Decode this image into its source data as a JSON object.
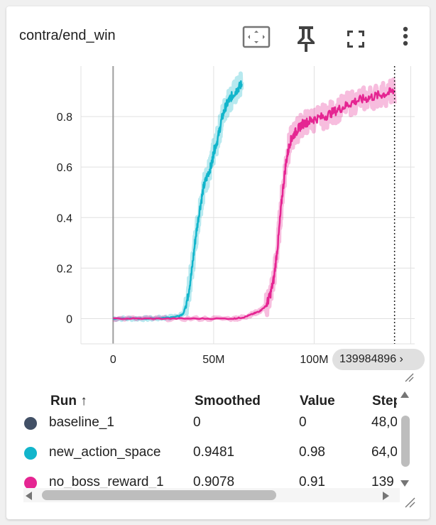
{
  "card": {
    "title": "contra/end_win",
    "icons": [
      "fit-domain-icon",
      "pin-icon",
      "fullscreen-icon",
      "more-vert-icon"
    ]
  },
  "step_badge": "139984896 ›",
  "chart_data": {
    "type": "line",
    "title": "contra/end_win",
    "xlabel": "",
    "ylabel": "",
    "xlim": [
      -16000000,
      150000000
    ],
    "ylim": [
      -0.1,
      1.0
    ],
    "x_ticks": [
      0,
      50000000,
      100000000
    ],
    "x_tick_labels": [
      "0",
      "50M",
      "100M"
    ],
    "y_ticks": [
      0,
      0.2,
      0.4,
      0.6,
      0.8
    ],
    "y_tick_labels": [
      "0",
      "0.2",
      "0.4",
      "0.6",
      "0.8"
    ],
    "grid": true,
    "cursor_x": 139984896,
    "series": [
      {
        "name": "new_action_space",
        "color": "#12b5cb",
        "x": [
          0,
          10000000,
          20000000,
          28000000,
          33000000,
          35000000,
          37000000,
          39000000,
          41000000,
          43000000,
          45000000,
          47000000,
          49000000,
          50000000,
          52000000,
          54000000,
          56000000,
          58000000,
          60000000,
          62000000,
          64000000
        ],
        "y": [
          0,
          0,
          0,
          0.005,
          0.01,
          0.02,
          0.08,
          0.18,
          0.32,
          0.43,
          0.52,
          0.57,
          0.61,
          0.66,
          0.71,
          0.79,
          0.84,
          0.87,
          0.89,
          0.91,
          0.93
        ]
      },
      {
        "name": "no_boss_reward_1",
        "color": "#e52592",
        "x": [
          0,
          20000000,
          40000000,
          60000000,
          65000000,
          70000000,
          73000000,
          76000000,
          78000000,
          80000000,
          82000000,
          84000000,
          86000000,
          88000000,
          90000000,
          92000000,
          94000000,
          97000000,
          100000000,
          105000000,
          110000000,
          115000000,
          120000000,
          125000000,
          130000000,
          135000000,
          140000000
        ],
        "y": [
          0,
          0,
          0,
          0,
          0.005,
          0.02,
          0.03,
          0.05,
          0.09,
          0.16,
          0.3,
          0.48,
          0.62,
          0.7,
          0.73,
          0.75,
          0.77,
          0.78,
          0.79,
          0.8,
          0.82,
          0.84,
          0.86,
          0.87,
          0.88,
          0.89,
          0.9
        ]
      }
    ]
  },
  "table": {
    "headers": {
      "run": "Run ↑",
      "smoothed": "Smoothed",
      "value": "Value",
      "step": "Step"
    },
    "rows": [
      {
        "run": "baseline_1",
        "color": "#425066",
        "smoothed": "0",
        "value": "0",
        "step": "48,0"
      },
      {
        "run": "new_action_space",
        "color": "#12b5cb",
        "smoothed": "0.9481",
        "value": "0.98",
        "step": "64,0"
      },
      {
        "run": "no_boss_reward_1",
        "color": "#e52592",
        "smoothed": "0.9078",
        "value": "0.91",
        "step": "139"
      }
    ]
  }
}
